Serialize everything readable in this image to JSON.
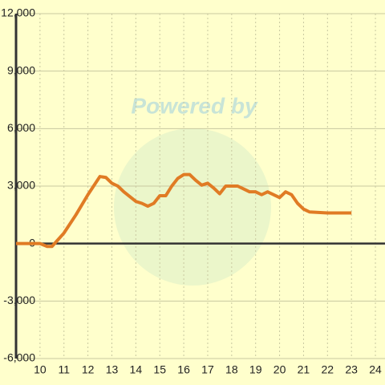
{
  "chart_data": {
    "type": "line",
    "watermark": "Powered by",
    "x": [
      9,
      10,
      10.3,
      10.5,
      11,
      11.5,
      12,
      12.5,
      12.75,
      13,
      13.25,
      13.5,
      14,
      14.25,
      14.5,
      14.75,
      15,
      15.25,
      15.5,
      15.75,
      16,
      16.25,
      16.5,
      16.75,
      17,
      17.25,
      17.5,
      17.75,
      18,
      18.25,
      18.5,
      18.75,
      19,
      19.25,
      19.5,
      20,
      20.25,
      20.5,
      20.75,
      21,
      21.25,
      22,
      23
    ],
    "series": [
      {
        "color": "#e07b24",
        "values": [
          0,
          0,
          -150,
          -150,
          550,
          1500,
          2550,
          3500,
          3450,
          3150,
          3000,
          2700,
          2200,
          2100,
          1950,
          2100,
          2500,
          2500,
          3000,
          3400,
          3600,
          3600,
          3300,
          3050,
          3150,
          2900,
          2600,
          3000,
          3000,
          3000,
          2850,
          2700,
          2700,
          2550,
          2700,
          2400,
          2700,
          2550,
          2100,
          1800,
          1650,
          1600,
          1600
        ]
      }
    ],
    "xlim": [
      9,
      24.4
    ],
    "ylim": [
      -6000,
      12000
    ],
    "xticks": [
      10,
      11,
      12,
      13,
      14,
      15,
      16,
      17,
      18,
      19,
      20,
      21,
      22,
      23,
      24
    ],
    "yticks": [
      {
        "value": -6000,
        "label": "-6,000"
      },
      {
        "value": -3000,
        "label": "-3,000"
      },
      0,
      {
        "value": 3000,
        "label": "3,000"
      },
      {
        "value": 6000,
        "label": "6,000"
      },
      {
        "value": 9000,
        "label": "9,000"
      },
      {
        "value": 12000,
        "label": "12,000"
      }
    ],
    "grid": true
  }
}
